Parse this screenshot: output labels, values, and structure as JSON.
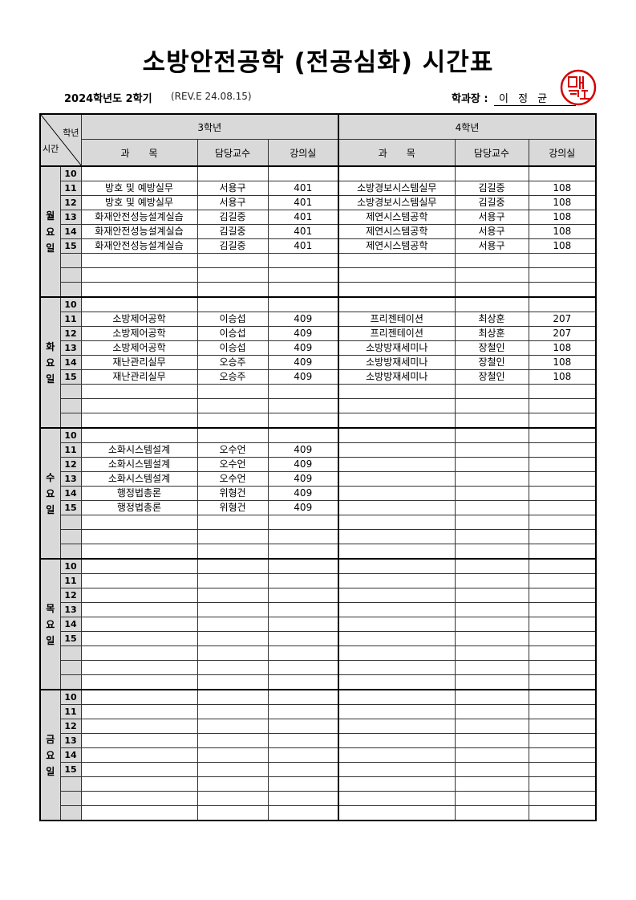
{
  "title": "소방안전공학 (전공심화) 시간표",
  "semester": "2024학년도 2학기",
  "revision": "(REV.E 24.08.15)",
  "head_label": "학과장 :",
  "head_name": "이 정 균",
  "stamp_text": "이정균",
  "stamp_color": "#d40000",
  "table": {
    "corner_top": "학년",
    "corner_bottom": "시간",
    "year3": "3학년",
    "year4": "4학년",
    "columns": [
      "과　　목",
      "담당교수",
      "강의실",
      "과　　목",
      "담당교수",
      "강의실"
    ]
  },
  "days": [
    {
      "label": "월요일",
      "rows": [
        {
          "hour": "10",
          "cells": [
            "",
            "",
            "",
            "",
            "",
            ""
          ]
        },
        {
          "hour": "11",
          "cells": [
            "방호 및 예방실무",
            "서용구",
            "401",
            "소방경보시스템실무",
            "김길중",
            "108"
          ]
        },
        {
          "hour": "12",
          "cells": [
            "방호 및 예방실무",
            "서용구",
            "401",
            "소방경보시스템실무",
            "김길중",
            "108"
          ]
        },
        {
          "hour": "13",
          "cells": [
            "화재안전성능설계실습",
            "김길중",
            "401",
            "제연시스템공학",
            "서용구",
            "108"
          ]
        },
        {
          "hour": "14",
          "cells": [
            "화재안전성능설계실습",
            "김길중",
            "401",
            "제연시스템공학",
            "서용구",
            "108"
          ]
        },
        {
          "hour": "15",
          "cells": [
            "화재안전성능설계실습",
            "김길중",
            "401",
            "제연시스템공학",
            "서용구",
            "108"
          ]
        },
        {
          "hour": "",
          "cells": [
            "",
            "",
            "",
            "",
            "",
            ""
          ]
        },
        {
          "hour": "",
          "cells": [
            "",
            "",
            "",
            "",
            "",
            ""
          ]
        },
        {
          "hour": "",
          "cells": [
            "",
            "",
            "",
            "",
            "",
            ""
          ]
        }
      ]
    },
    {
      "label": "화요일",
      "rows": [
        {
          "hour": "10",
          "cells": [
            "",
            "",
            "",
            "",
            "",
            ""
          ]
        },
        {
          "hour": "11",
          "cells": [
            "소방제어공학",
            "이승섭",
            "409",
            "프리젠테이션",
            "최상훈",
            "207"
          ]
        },
        {
          "hour": "12",
          "cells": [
            "소방제어공학",
            "이승섭",
            "409",
            "프리젠테이션",
            "최상훈",
            "207"
          ]
        },
        {
          "hour": "13",
          "cells": [
            "소방제어공학",
            "이승섭",
            "409",
            "소방방재세미나",
            "장철인",
            "108"
          ]
        },
        {
          "hour": "14",
          "cells": [
            "재난관리실무",
            "오승주",
            "409",
            "소방방재세미나",
            "장철인",
            "108"
          ]
        },
        {
          "hour": "15",
          "cells": [
            "재난관리실무",
            "오승주",
            "409",
            "소방방재세미나",
            "장철인",
            "108"
          ]
        },
        {
          "hour": "",
          "cells": [
            "",
            "",
            "",
            "",
            "",
            ""
          ]
        },
        {
          "hour": "",
          "cells": [
            "",
            "",
            "",
            "",
            "",
            ""
          ]
        },
        {
          "hour": "",
          "cells": [
            "",
            "",
            "",
            "",
            "",
            ""
          ]
        }
      ]
    },
    {
      "label": "수요일",
      "rows": [
        {
          "hour": "10",
          "cells": [
            "",
            "",
            "",
            "",
            "",
            ""
          ]
        },
        {
          "hour": "11",
          "cells": [
            "소화시스템설계",
            "오수언",
            "409",
            "",
            "",
            ""
          ]
        },
        {
          "hour": "12",
          "cells": [
            "소화시스템설계",
            "오수언",
            "409",
            "",
            "",
            ""
          ]
        },
        {
          "hour": "13",
          "cells": [
            "소화시스템설계",
            "오수언",
            "409",
            "",
            "",
            ""
          ]
        },
        {
          "hour": "14",
          "cells": [
            "행정법총론",
            "위형건",
            "409",
            "",
            "",
            ""
          ]
        },
        {
          "hour": "15",
          "cells": [
            "행정법총론",
            "위형건",
            "409",
            "",
            "",
            ""
          ]
        },
        {
          "hour": "",
          "cells": [
            "",
            "",
            "",
            "",
            "",
            ""
          ]
        },
        {
          "hour": "",
          "cells": [
            "",
            "",
            "",
            "",
            "",
            ""
          ]
        },
        {
          "hour": "",
          "cells": [
            "",
            "",
            "",
            "",
            "",
            ""
          ]
        }
      ]
    },
    {
      "label": "목요일",
      "rows": [
        {
          "hour": "10",
          "cells": [
            "",
            "",
            "",
            "",
            "",
            ""
          ]
        },
        {
          "hour": "11",
          "cells": [
            "",
            "",
            "",
            "",
            "",
            ""
          ]
        },
        {
          "hour": "12",
          "cells": [
            "",
            "",
            "",
            "",
            "",
            ""
          ]
        },
        {
          "hour": "13",
          "cells": [
            "",
            "",
            "",
            "",
            "",
            ""
          ]
        },
        {
          "hour": "14",
          "cells": [
            "",
            "",
            "",
            "",
            "",
            ""
          ]
        },
        {
          "hour": "15",
          "cells": [
            "",
            "",
            "",
            "",
            "",
            ""
          ]
        },
        {
          "hour": "",
          "cells": [
            "",
            "",
            "",
            "",
            "",
            ""
          ]
        },
        {
          "hour": "",
          "cells": [
            "",
            "",
            "",
            "",
            "",
            ""
          ]
        },
        {
          "hour": "",
          "cells": [
            "",
            "",
            "",
            "",
            "",
            ""
          ]
        }
      ]
    },
    {
      "label": "금요일",
      "rows": [
        {
          "hour": "10",
          "cells": [
            "",
            "",
            "",
            "",
            "",
            ""
          ]
        },
        {
          "hour": "11",
          "cells": [
            "",
            "",
            "",
            "",
            "",
            ""
          ]
        },
        {
          "hour": "12",
          "cells": [
            "",
            "",
            "",
            "",
            "",
            ""
          ]
        },
        {
          "hour": "13",
          "cells": [
            "",
            "",
            "",
            "",
            "",
            ""
          ]
        },
        {
          "hour": "14",
          "cells": [
            "",
            "",
            "",
            "",
            "",
            ""
          ]
        },
        {
          "hour": "15",
          "cells": [
            "",
            "",
            "",
            "",
            "",
            ""
          ]
        },
        {
          "hour": "",
          "cells": [
            "",
            "",
            "",
            "",
            "",
            ""
          ]
        },
        {
          "hour": "",
          "cells": [
            "",
            "",
            "",
            "",
            "",
            ""
          ]
        },
        {
          "hour": "",
          "cells": [
            "",
            "",
            "",
            "",
            "",
            ""
          ]
        }
      ]
    }
  ]
}
